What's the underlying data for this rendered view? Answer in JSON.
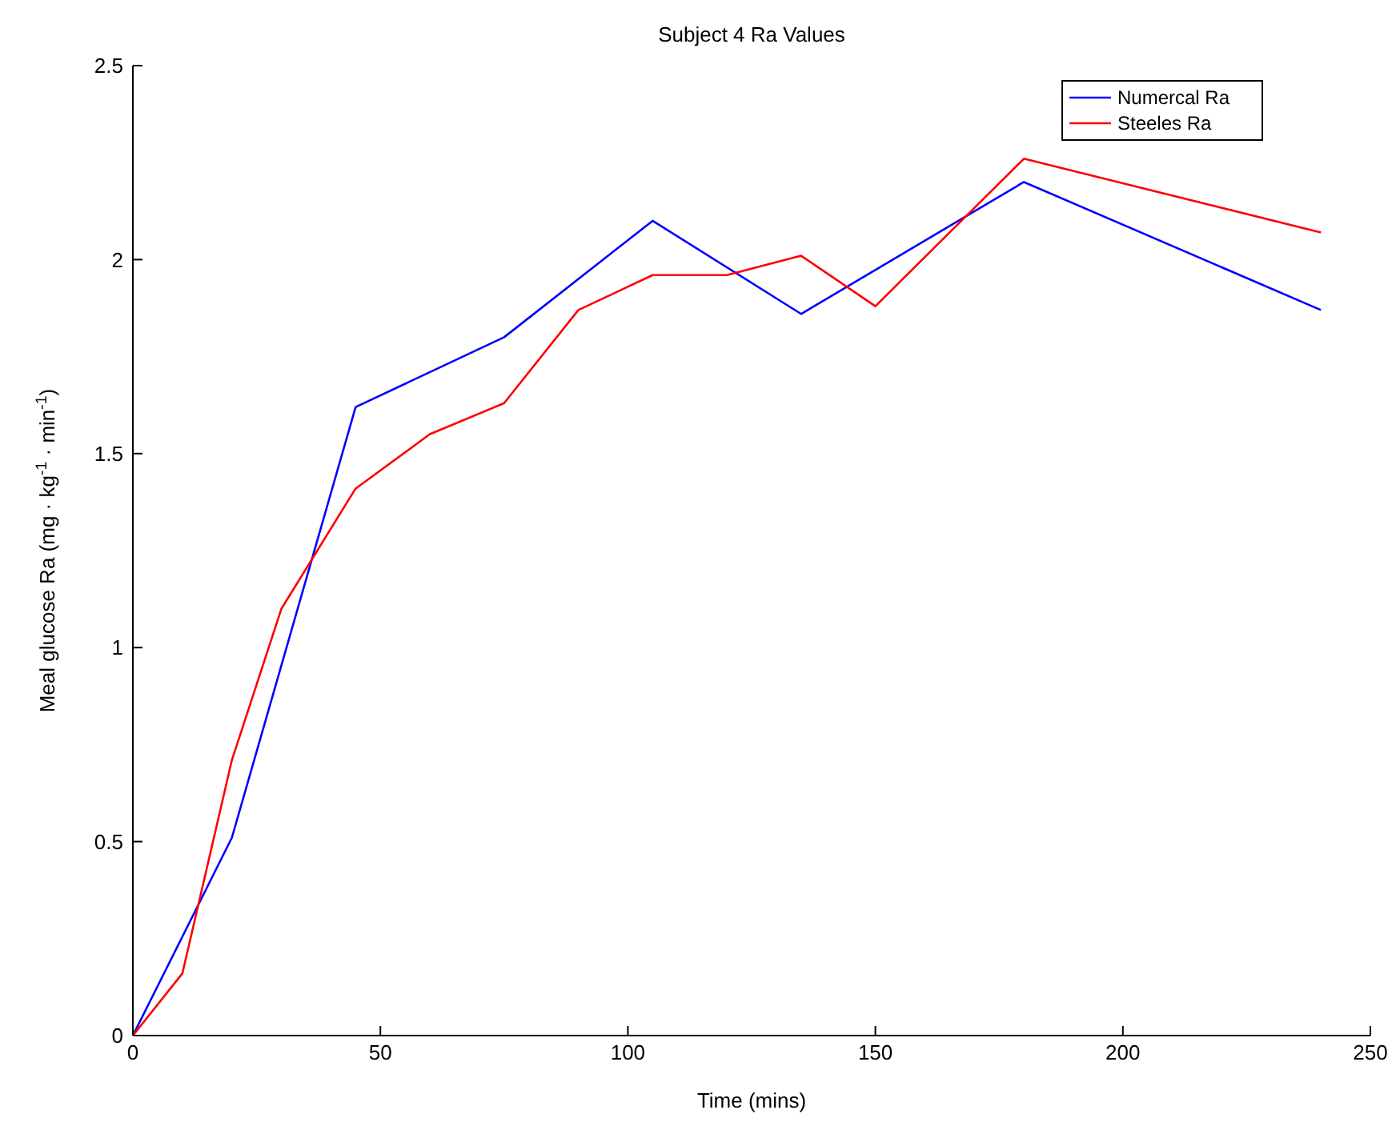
{
  "chart_data": {
    "type": "line",
    "title": "Subject 4 Ra Values",
    "xlabel": "Time (mins)",
    "ylabel": "Meal glucose Ra (mg  · kg$^{-1}$ · min$^{-1}$)",
    "series": [
      {
        "name": "Numercal Ra",
        "color": "#0000ff",
        "x": [
          0,
          20,
          45,
          75,
          105,
          135,
          180,
          240
        ],
        "values": [
          0,
          0.51,
          1.62,
          1.8,
          2.1,
          1.86,
          2.2,
          1.87
        ]
      },
      {
        "name": "Steeles Ra",
        "color": "#ff0000",
        "x": [
          0,
          10,
          20,
          30,
          45,
          60,
          75,
          90,
          105,
          120,
          135,
          150,
          180,
          240
        ],
        "values": [
          0,
          0.16,
          0.71,
          1.1,
          1.41,
          1.55,
          1.63,
          1.87,
          1.96,
          1.96,
          2.01,
          1.88,
          2.26,
          2.07
        ]
      }
    ],
    "xlim": [
      0,
      250
    ],
    "xticks": [
      0,
      50,
      100,
      150,
      200,
      250
    ],
    "ylim": [
      0,
      2.5
    ],
    "yticks": [
      0,
      0.5,
      1,
      1.5,
      2,
      2.5
    ],
    "grid": false,
    "legend": "top right",
    "marker": "none",
    "line_style": "solid"
  }
}
